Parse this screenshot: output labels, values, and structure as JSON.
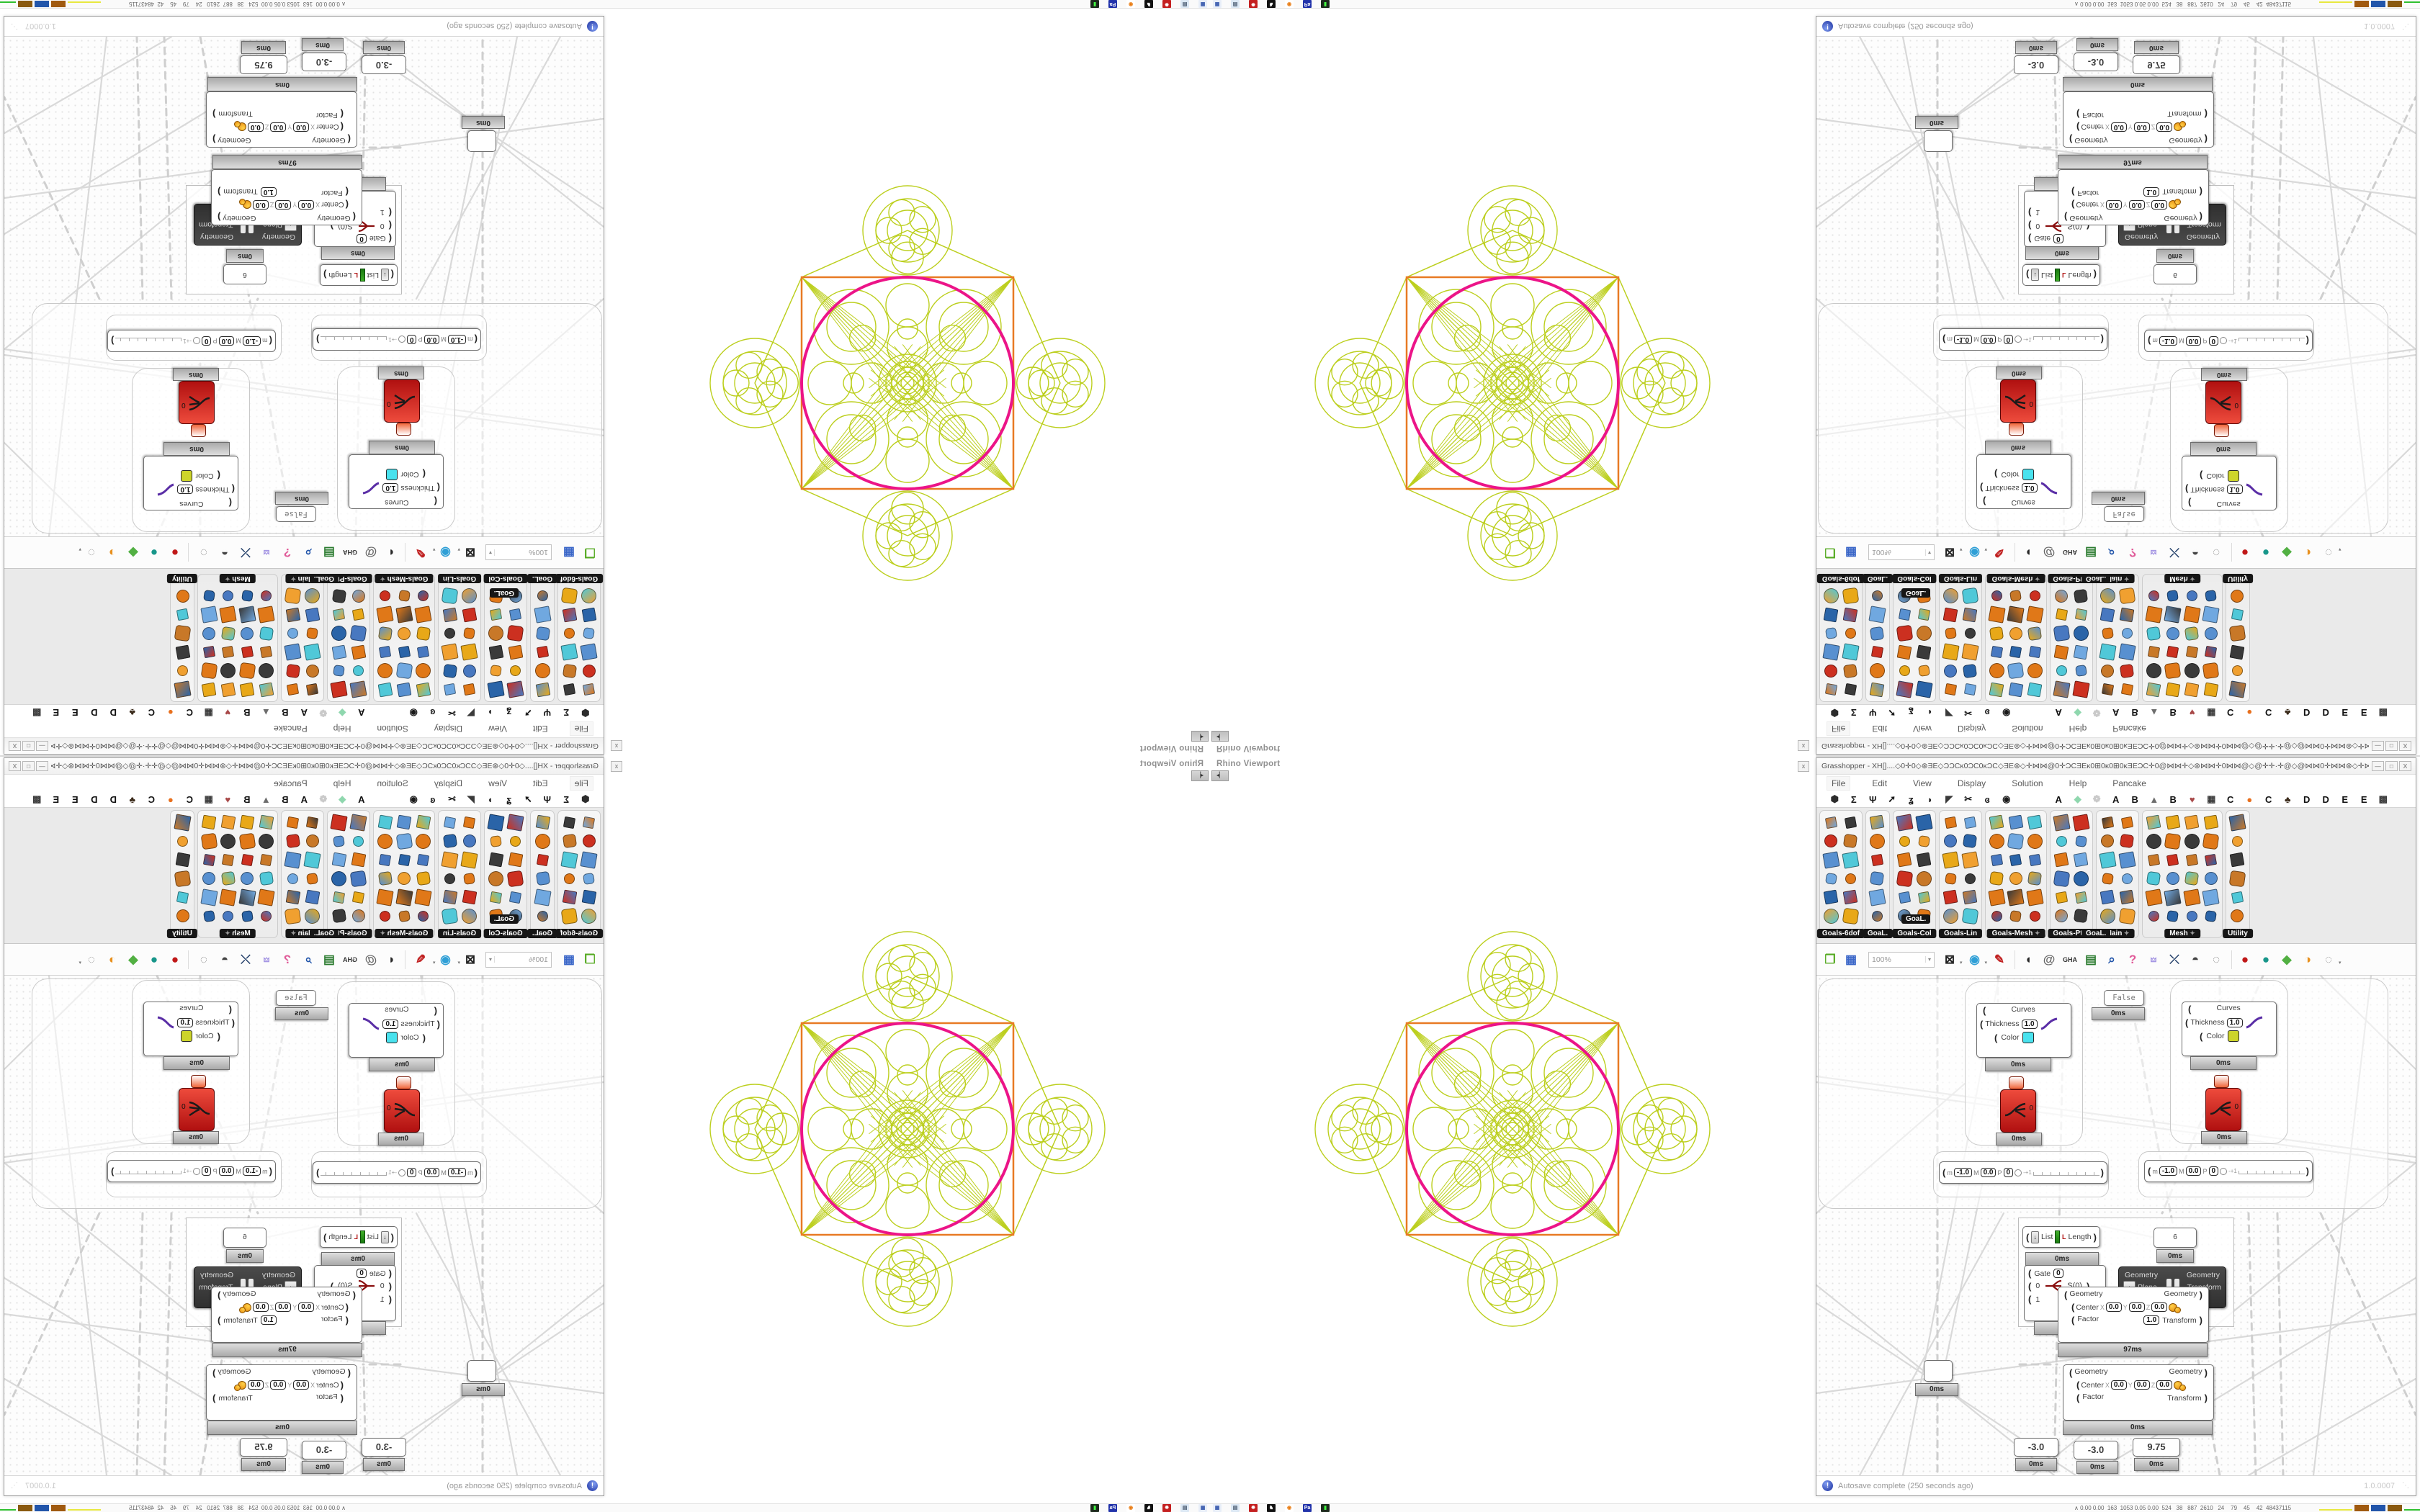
{
  "viewport": {
    "label": "Rhino Viewport",
    "splitter_glyph": "◂▏",
    "close_glyph": "x",
    "figure": {
      "green": "#bccf1e",
      "magenta": "#ec1488",
      "orange": "#e87a24"
    }
  },
  "gh": {
    "title": "Grasshopper - XH[]....◇0✛0◇⊛ƎE◇ƆƆCĸ0ƆC0ĸƆC◇ƎE⊛◇✛⋈⋈@0✛ƆCƎEĸ0⊞0ĸ0⊞0ĸƎEƆC✛0@⋈⋈✛◇⊛⋈⋈✛0⋈⋈@◇@✛✛·✛@◇@⋈⋈0✛⋈⋈⊛◇✛⋈⋈@0✛ƆCƎEĸ0⊞0ĸ0...",
    "win_min": "—",
    "win_max": "□",
    "win_close": "X",
    "menus": [
      "File",
      "Edit",
      "View",
      "Display",
      "Solution",
      "Help",
      "Pancake"
    ],
    "favorites": [
      {
        "t": "⬢",
        "c": "#2c2c2c"
      },
      {
        "t": "Σ",
        "c": "#1a1a1a"
      },
      {
        "t": "Ψ",
        "c": "#1a1a1a"
      },
      {
        "t": "➚",
        "c": "#1a1a1a"
      },
      {
        "t": "ʓ",
        "c": "#1a1a1a"
      },
      {
        "t": "◗",
        "c": "#1a1a1a"
      },
      {
        "t": "◤",
        "c": "#3a3a3a"
      },
      {
        "t": "✂",
        "c": "#1a1a1a"
      },
      {
        "t": "ɞ",
        "c": "#1a1a1a"
      },
      {
        "t": "◉",
        "c": "#1a1a1a"
      },
      {
        "t": "A",
        "c": "#111111"
      },
      {
        "t": "◆",
        "c": "#8fd7ae"
      },
      {
        "t": "❁",
        "c": "#c9c9c9"
      },
      {
        "t": "A",
        "c": "#111111"
      },
      {
        "t": "B",
        "c": "#111111"
      },
      {
        "t": "▲",
        "c": "#6d6d6d"
      },
      {
        "t": "B",
        "c": "#111111"
      },
      {
        "t": "♥",
        "c": "#a84848"
      },
      {
        "t": "▦",
        "c": "#3a3a3a"
      },
      {
        "t": "C",
        "c": "#111111"
      },
      {
        "t": "●",
        "c": "#e8701e"
      },
      {
        "t": "C",
        "c": "#111111"
      },
      {
        "t": "♣",
        "c": "#3a2a1a"
      },
      {
        "t": "D",
        "c": "#111111"
      },
      {
        "t": "D",
        "c": "#111111"
      },
      {
        "t": "E",
        "c": "#111111"
      },
      {
        "t": "E",
        "c": "#111111"
      },
      {
        "t": "▩",
        "c": "#3a3a3a"
      }
    ],
    "panels": [
      {
        "label": "Goals-6dof",
        "cols": 2,
        "pin": false
      },
      {
        "label": "GoaL.",
        "cols": 1,
        "pin": false
      },
      {
        "label": "Goals-Col",
        "cols": 2,
        "pin": false
      },
      {
        "label": "Goals-Lin",
        "cols": 2,
        "pin": false
      },
      {
        "label": "Goals-Mesh",
        "cols": 3,
        "pin": true
      },
      {
        "label": "Goals-Pt",
        "cols": 2,
        "pin": true
      },
      {
        "label": "Main",
        "cols": 2,
        "pin": true
      },
      {
        "label": "Mesh",
        "cols": 4,
        "pin": true
      },
      {
        "label": "Utility",
        "cols": 1,
        "pin": false
      }
    ],
    "goal_tooltip": "GoaL.",
    "toolbar": {
      "zoom": "100%",
      "items": [
        {
          "g": "❐",
          "c": "#55aa22"
        },
        {
          "g": "▦",
          "c": "#3a66c8"
        },
        {
          "g": "⊠",
          "c": "#222222",
          "dd": true
        },
        {
          "g": "◉",
          "c": "#2f9fd6",
          "dd": true
        },
        {
          "g": "✎",
          "c": "#c02020"
        },
        {
          "g": "◖",
          "c": "#2a2a2a"
        },
        {
          "g": "@",
          "c": "#666666"
        },
        {
          "g": "GHA",
          "c": "#333333"
        },
        {
          "g": "▤",
          "c": "#2e7d32"
        },
        {
          "g": "⌕",
          "c": "#2255aa"
        },
        {
          "g": "?",
          "c": "#e05a98"
        },
        {
          "g": "🜲",
          "c": "#9a8ae0"
        },
        {
          "g": "⤫",
          "c": "#24406a"
        },
        {
          "g": "◓",
          "c": "#444444"
        },
        {
          "g": "◌",
          "c": "#8a8a8a"
        },
        {
          "g": "●",
          "c": "#c01818"
        },
        {
          "g": "●",
          "c": "#18968a"
        },
        {
          "g": "◆",
          "c": "#52b043"
        },
        {
          "g": "◑",
          "c": "#e8901e"
        },
        {
          "g": "◌",
          "c": "#9a9a9a",
          "dd": true
        }
      ]
    },
    "canvas": {
      "false_label": "False",
      "ms0": "0ms",
      "ms97": "97ms",
      "curves": {
        "title": "Curves",
        "thickness": "Thickness",
        "thickness_value": "1.0",
        "color": "Color",
        "cyan": "#49e2ee",
        "yellow": "#cdd42a"
      },
      "red_value": "0",
      "slider": {
        "m": "m",
        "min": "-1.0",
        "M": "M",
        "mid": "0.0",
        "p": "P",
        "val": "0",
        "plus": "-+1"
      },
      "list": {
        "drop": "↓",
        "in": "List",
        "tag": "L",
        "out": "Length"
      },
      "six": "6",
      "gate": {
        "label": "Gate",
        "v": "0",
        "r0": "0",
        "r1": "1",
        "expr": "S(0)"
      },
      "dark": {
        "i1": "Geometry",
        "i2": "Plane",
        "o1": "Geometry",
        "o2": "Transform",
        "drop": "↓"
      },
      "geo": {
        "i1": "Geometry",
        "center": "Center",
        "x": "X",
        "y": "Y",
        "z": "Z",
        "v": "0.0",
        "factor": "Factor",
        "factor_value": "1.0",
        "o1": "Geometry",
        "o2": "Transform"
      },
      "numbers": [
        "-3.0",
        "-3.0",
        "9.75"
      ]
    },
    "status": {
      "autosave": "Autosave complete (250 seconds ago)",
      "icon": "!",
      "version": "1.0.0007",
      "grip": "⋱"
    }
  },
  "taskbar": {
    "tray": [
      {
        "t": "▦",
        "bg": "#e8eef8",
        "c": "#3355aa"
      },
      {
        "t": "▤",
        "bg": "#dce8f4",
        "c": "#44556a"
      },
      {
        "t": "✹",
        "bg": "#c42020",
        "c": "#ffffff"
      },
      {
        "t": "♞",
        "bg": "#111111",
        "c": "#ffffff"
      },
      {
        "t": "◉",
        "bg": "#ffffff",
        "c": "#e87a10"
      },
      {
        "t": "Pa",
        "bg": "#2233aa",
        "c": "#ffffff"
      },
      {
        "t": "▮",
        "bg": "#1d2a1d",
        "c": "#44ff44"
      }
    ],
    "monitor": {
      "caret": "∧",
      "text": "0.00 0.00  163  1053 0.05 0.00  524   38   887  2610   24    79    45    42  48437115",
      "underline_color": "#e8e840",
      "green_line": "#30c030",
      "blocks": [
        "#a05a10",
        "#2255aa",
        "#8a5a10",
        "#b01818"
      ]
    }
  }
}
